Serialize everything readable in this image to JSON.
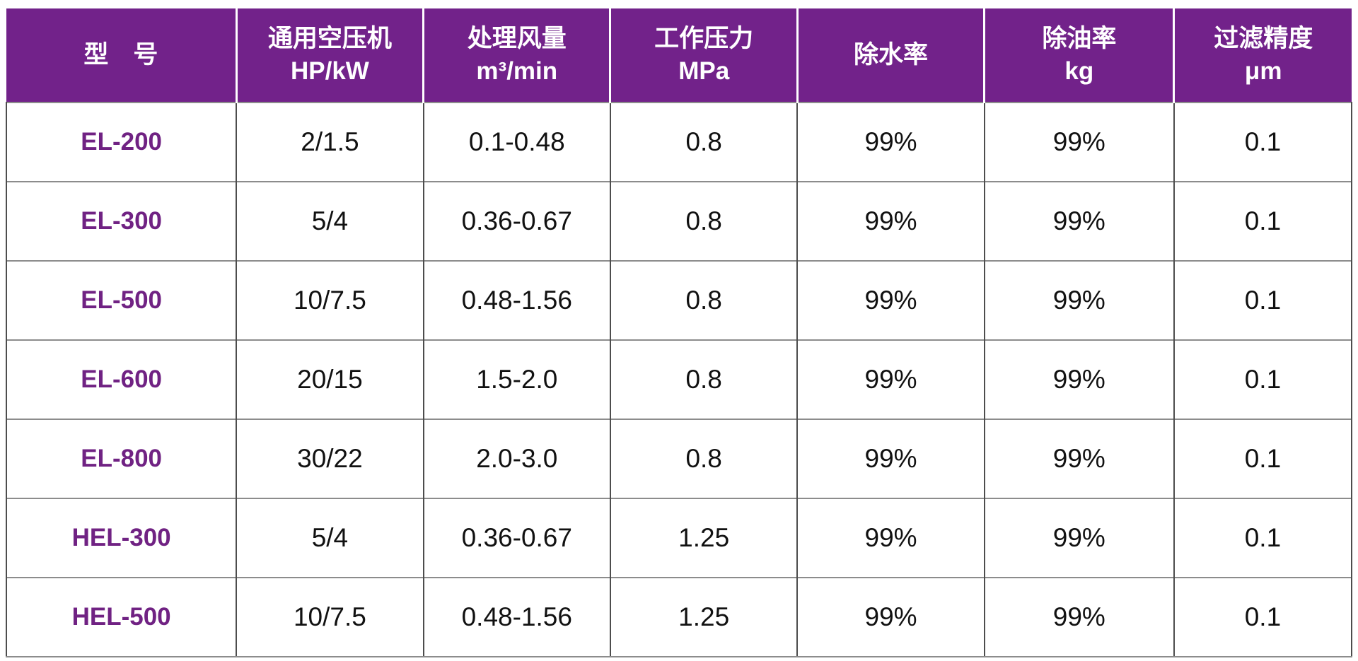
{
  "colors": {
    "header_bg": "#72228a",
    "header_text": "#ffffff",
    "model_text": "#702283",
    "body_text": "#111111",
    "grid_vertical": "#4d4d4d",
    "grid_horizontal": "#8c8c8c",
    "header_divider": "#ffffff",
    "page_bg": "#ffffff"
  },
  "table": {
    "headers": [
      {
        "line1": "型　号",
        "line2": ""
      },
      {
        "line1": "通用空压机",
        "line2": "HP/kW"
      },
      {
        "line1": "处理风量",
        "line2": "m³/min"
      },
      {
        "line1": "工作压力",
        "line2": "MPa"
      },
      {
        "line1": "除水率",
        "line2": ""
      },
      {
        "line1": "除油率",
        "line2": "kg"
      },
      {
        "line1": "过滤精度",
        "line2": "μm"
      }
    ],
    "rows": [
      {
        "model": "EL-200",
        "values": [
          "2/1.5",
          "0.1-0.48",
          "0.8",
          "99%",
          "99%",
          "0.1"
        ]
      },
      {
        "model": "EL-300",
        "values": [
          "5/4",
          "0.36-0.67",
          "0.8",
          "99%",
          "99%",
          "0.1"
        ]
      },
      {
        "model": "EL-500",
        "values": [
          "10/7.5",
          "0.48-1.56",
          "0.8",
          "99%",
          "99%",
          "0.1"
        ]
      },
      {
        "model": "EL-600",
        "values": [
          "20/15",
          "1.5-2.0",
          "0.8",
          "99%",
          "99%",
          "0.1"
        ]
      },
      {
        "model": "EL-800",
        "values": [
          "30/22",
          "2.0-3.0",
          "0.8",
          "99%",
          "99%",
          "0.1"
        ]
      },
      {
        "model": "HEL-300",
        "values": [
          "5/4",
          "0.36-0.67",
          "1.25",
          "99%",
          "99%",
          "0.1"
        ]
      },
      {
        "model": "HEL-500",
        "values": [
          "10/7.5",
          "0.48-1.56",
          "1.25",
          "99%",
          "99%",
          "0.1"
        ]
      }
    ]
  },
  "chart_data": {
    "type": "table",
    "title": "",
    "columns": [
      "型号",
      "通用空压机 HP/kW",
      "处理风量 m³/min",
      "工作压力 MPa",
      "除水率",
      "除油率 kg",
      "过滤精度 μm"
    ],
    "rows": [
      [
        "EL-200",
        "2/1.5",
        "0.1-0.48",
        "0.8",
        "99%",
        "99%",
        "0.1"
      ],
      [
        "EL-300",
        "5/4",
        "0.36-0.67",
        "0.8",
        "99%",
        "99%",
        "0.1"
      ],
      [
        "EL-500",
        "10/7.5",
        "0.48-1.56",
        "0.8",
        "99%",
        "99%",
        "0.1"
      ],
      [
        "EL-600",
        "20/15",
        "1.5-2.0",
        "0.8",
        "99%",
        "99%",
        "0.1"
      ],
      [
        "EL-800",
        "30/22",
        "2.0-3.0",
        "0.8",
        "99%",
        "99%",
        "0.1"
      ],
      [
        "HEL-300",
        "5/4",
        "0.36-0.67",
        "1.25",
        "99%",
        "99%",
        "0.1"
      ],
      [
        "HEL-500",
        "10/7.5",
        "0.48-1.56",
        "1.25",
        "99%",
        "99%",
        "0.1"
      ]
    ]
  }
}
